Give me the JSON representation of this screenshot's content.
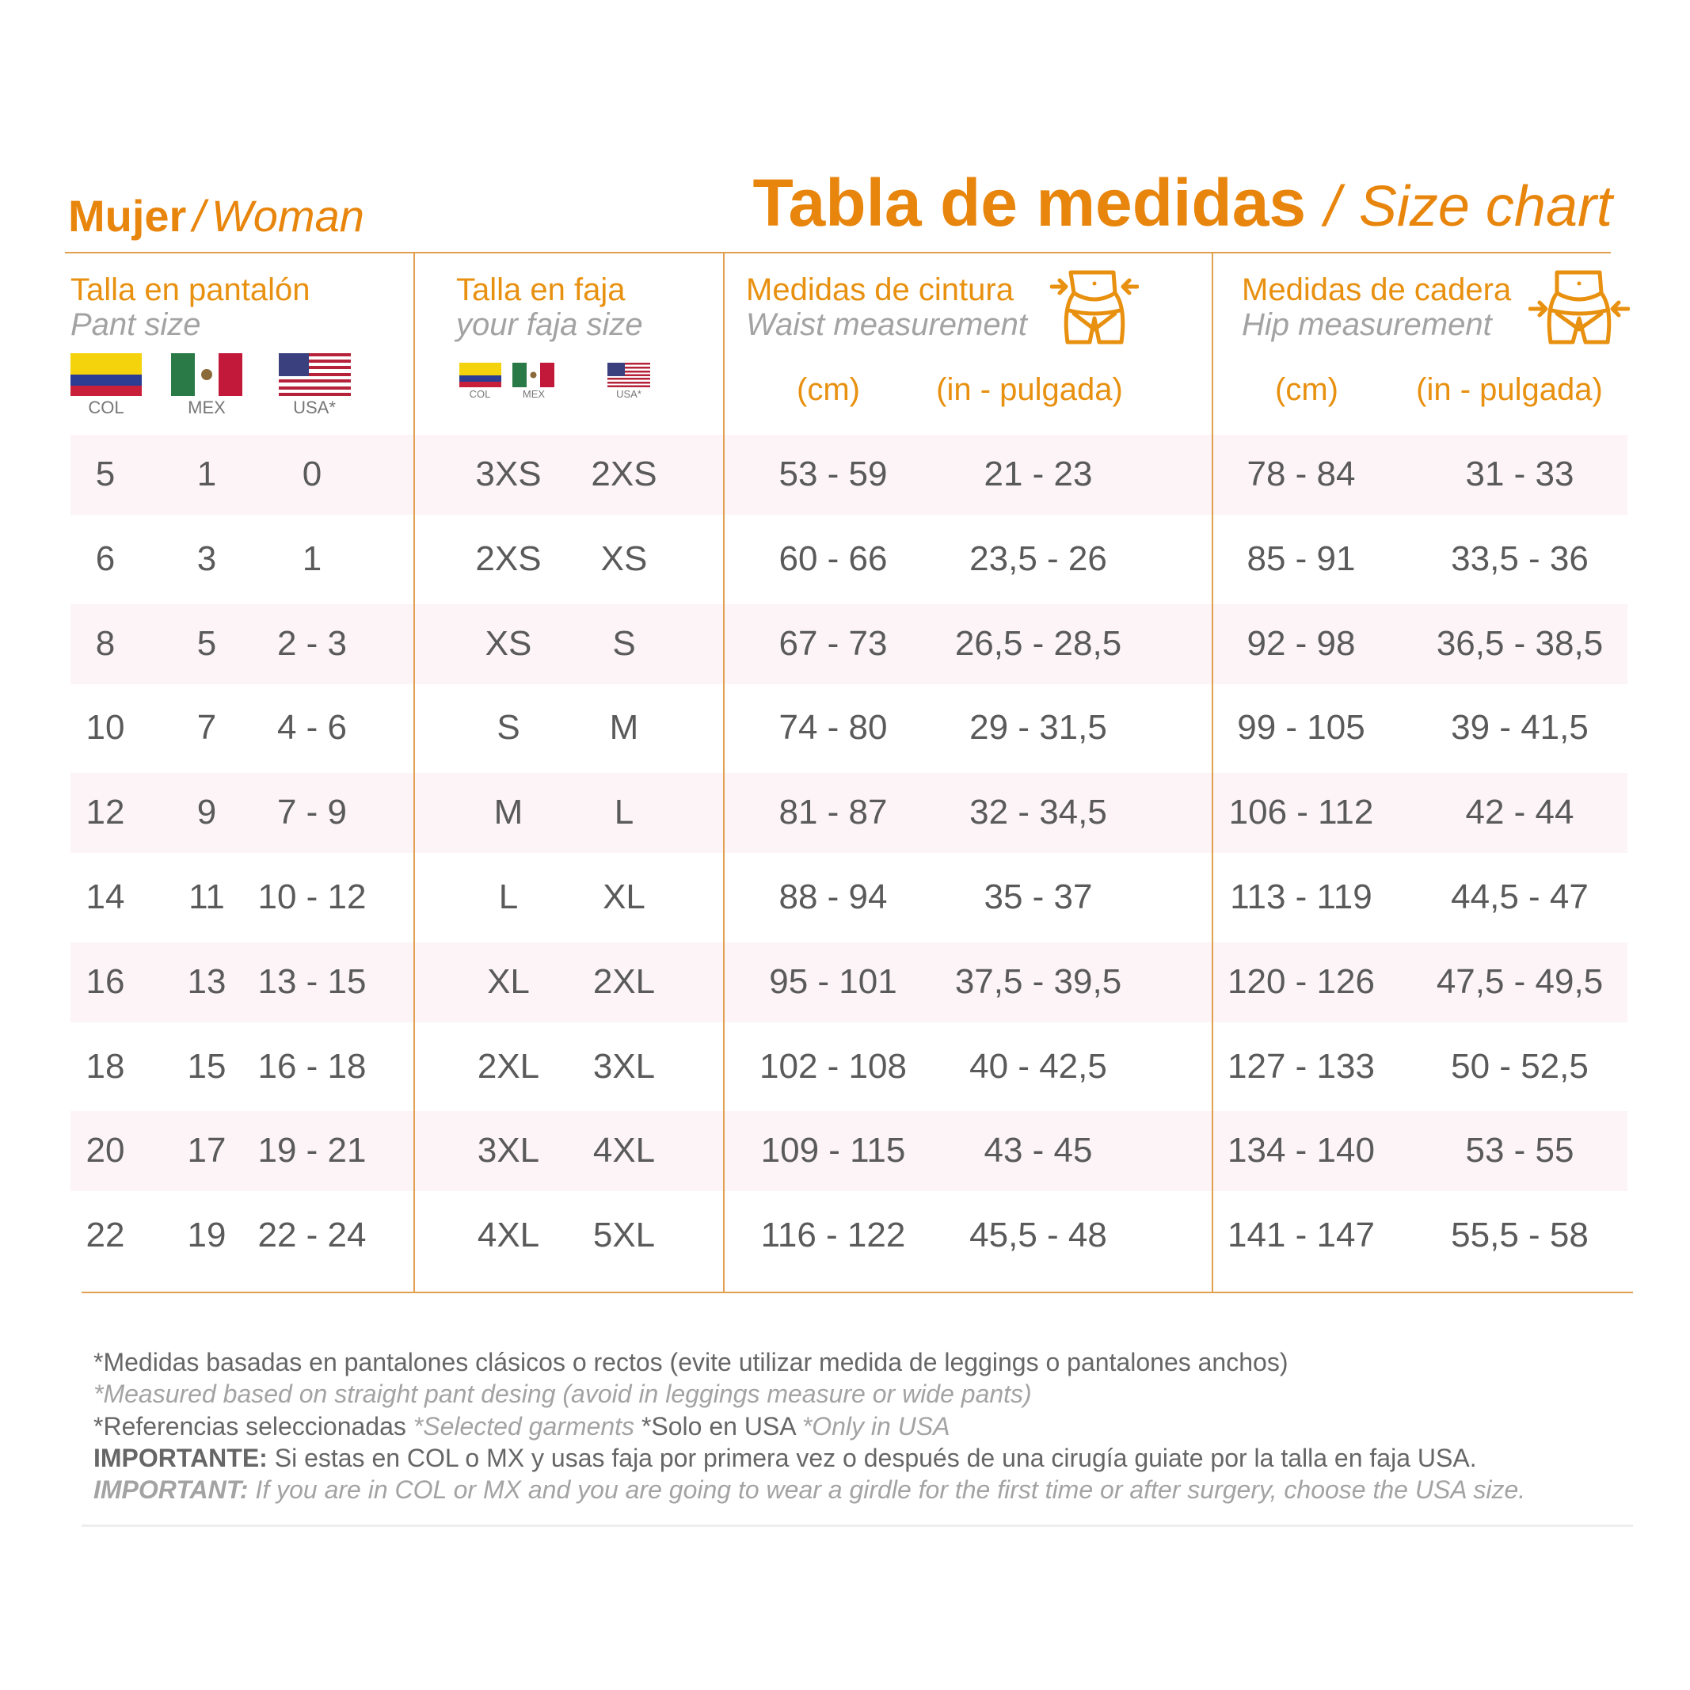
{
  "heading": {
    "section_es": "Mujer",
    "separator": "/",
    "section_en": "Woman",
    "title_es": "Tabla de medidas",
    "title_en": "Size chart"
  },
  "columns": {
    "pant": {
      "es": "Talla en pantalón",
      "en": "Pant size",
      "flags": [
        "COL",
        "MEX",
        "USA*"
      ]
    },
    "faja": {
      "es": "Talla en faja",
      "en": "your faja size",
      "flags": [
        "COL",
        "MEX",
        "USA*"
      ]
    },
    "waist": {
      "es": "Medidas de cintura",
      "en": "Waist  measurement",
      "unit_cm": "(cm)",
      "unit_in": "(in - pulgada)",
      "icon": "waist-body-icon"
    },
    "hip": {
      "es": "Medidas de cadera",
      "en": "Hip  measurement",
      "unit_cm": "(cm)",
      "unit_in": "(in - pulgada)",
      "icon": "hip-body-icon"
    }
  },
  "rows": [
    [
      "5",
      "1",
      "0",
      "3XS",
      "2XS",
      "53 - 59",
      "21 - 23",
      "78 - 84",
      "31 - 33"
    ],
    [
      "6",
      "3",
      "1",
      "2XS",
      "XS",
      "60 - 66",
      "23,5 - 26",
      "85 - 91",
      "33,5 - 36"
    ],
    [
      "8",
      "5",
      "2 - 3",
      "XS",
      "S",
      "67 - 73",
      "26,5 - 28,5",
      "92 - 98",
      "36,5 - 38,5"
    ],
    [
      "10",
      "7",
      "4 - 6",
      "S",
      "M",
      "74 - 80",
      "29 - 31,5",
      "99 - 105",
      "39 - 41,5"
    ],
    [
      "12",
      "9",
      "7 - 9",
      "M",
      "L",
      "81 - 87",
      "32 - 34,5",
      "106 - 112",
      "42 - 44"
    ],
    [
      "14",
      "11",
      "10 - 12",
      "L",
      "XL",
      "88 - 94",
      "35 - 37",
      "113 - 119",
      "44,5 - 47"
    ],
    [
      "16",
      "13",
      "13 - 15",
      "XL",
      "2XL",
      "95 - 101",
      "37,5 - 39,5",
      "120 - 126",
      "47,5 - 49,5"
    ],
    [
      "18",
      "15",
      "16 - 18",
      "2XL",
      "3XL",
      "102 - 108",
      "40 - 42,5",
      "127 - 133",
      "50 - 52,5"
    ],
    [
      "20",
      "17",
      "19 - 21",
      "3XL",
      "4XL",
      "109 - 115",
      "43 - 45",
      "134 - 140",
      "53 - 55"
    ],
    [
      "22",
      "19",
      "22 - 24",
      "4XL",
      "5XL",
      "116 - 122",
      "45,5 - 48",
      "141 - 147",
      "55,5 - 58"
    ]
  ],
  "notes": {
    "line1": "*Medidas basadas en pantalones clásicos o rectos (evite utilizar medida de leggings o pantalones anchos)",
    "line2": "*Measured based on straight pant desing (avoid in leggings measure or wide pants)",
    "line3_es1": "*Referencias seleccionadas ",
    "line3_en1": "*Selected garments ",
    "line3_es2": "*Solo en USA ",
    "line3_en2": "*Only in USA",
    "important_es_label": "IMPORTANTE:",
    "important_es": " Si estas en COL o MX y usas faja por primera vez o después de una cirugía guiate por la talla en faja USA.",
    "important_en_label": "IMPORTANT:",
    "important_en": " If you are in COL or MX and you are going to wear a girdle for the first time or after surgery, choose the USA size."
  },
  "colors": {
    "accent": "#e8850c",
    "stripe": "#fcf4f7",
    "text": "#5a5a5a",
    "muted": "#a3a3a3"
  }
}
